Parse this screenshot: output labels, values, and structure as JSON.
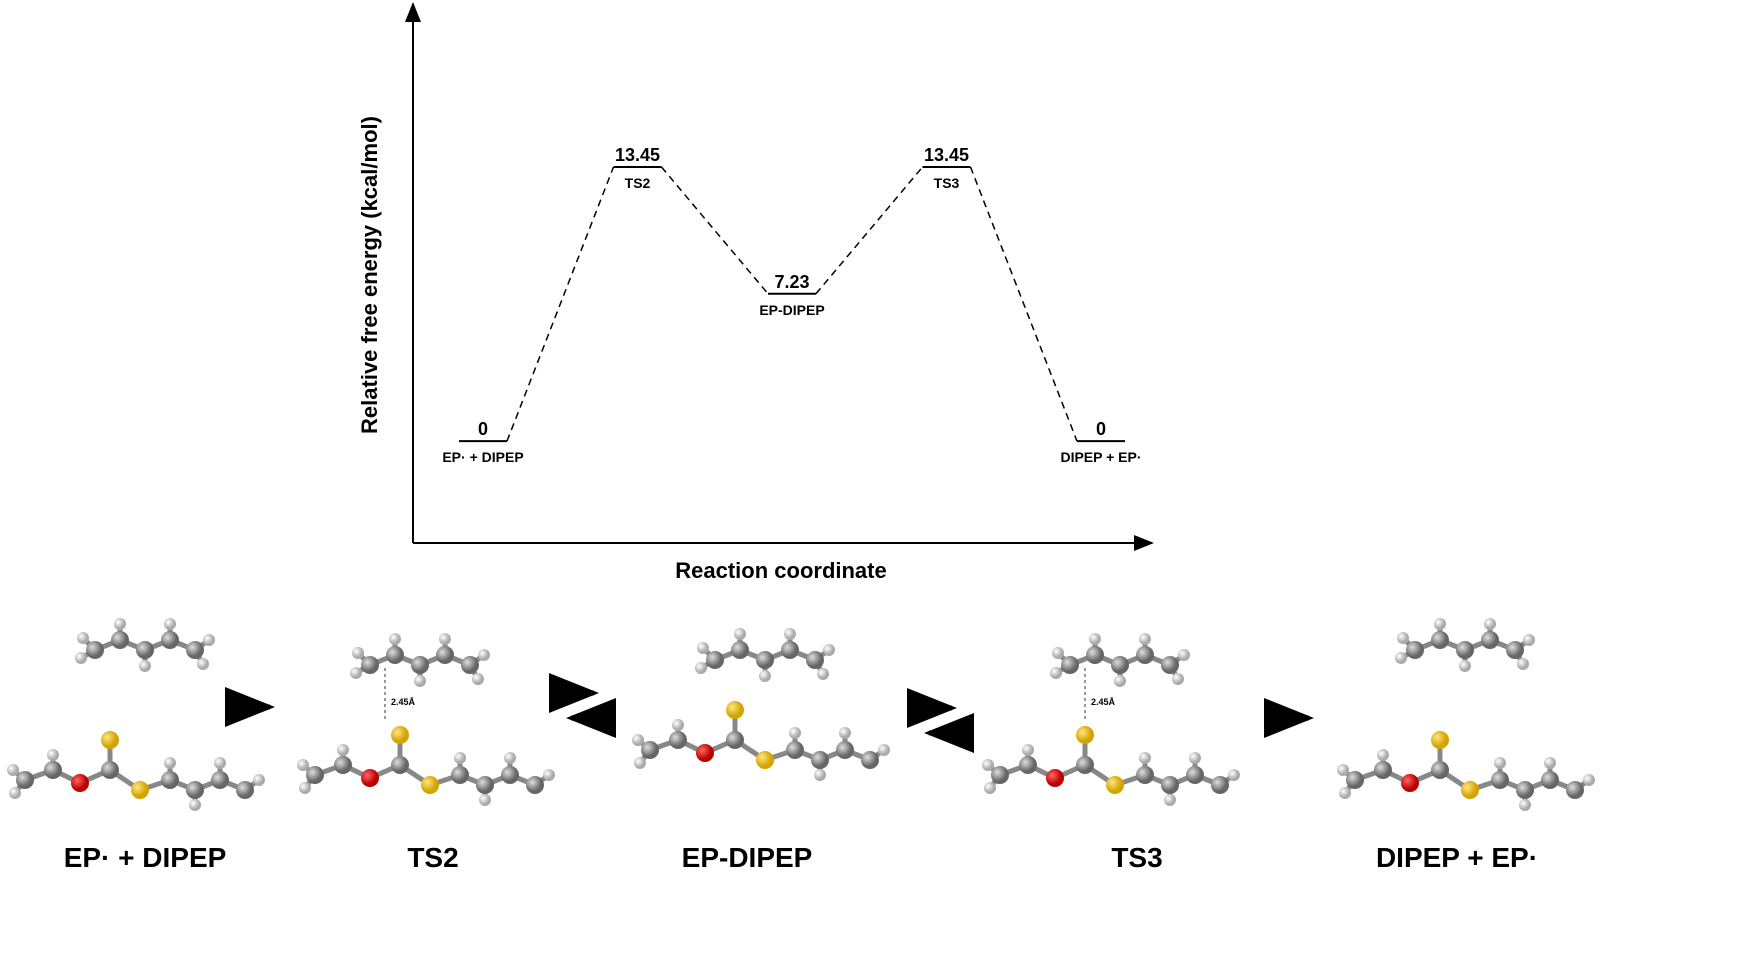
{
  "chart_data": {
    "type": "energy",
    "y_label": "Relative free energy (kcal/mol)",
    "x_label": "Reaction coordinate",
    "categories": [
      "EP· + DIPEP",
      "TS2",
      "EP-DIPEP",
      "TS3",
      "DIPEP + EP·"
    ],
    "values": [
      0,
      13.45,
      7.23,
      13.45,
      0
    ],
    "ylim": [
      -5,
      21.4
    ]
  },
  "scheme": {
    "bond_labels": [
      "2.45Å",
      "2.45Å"
    ]
  }
}
